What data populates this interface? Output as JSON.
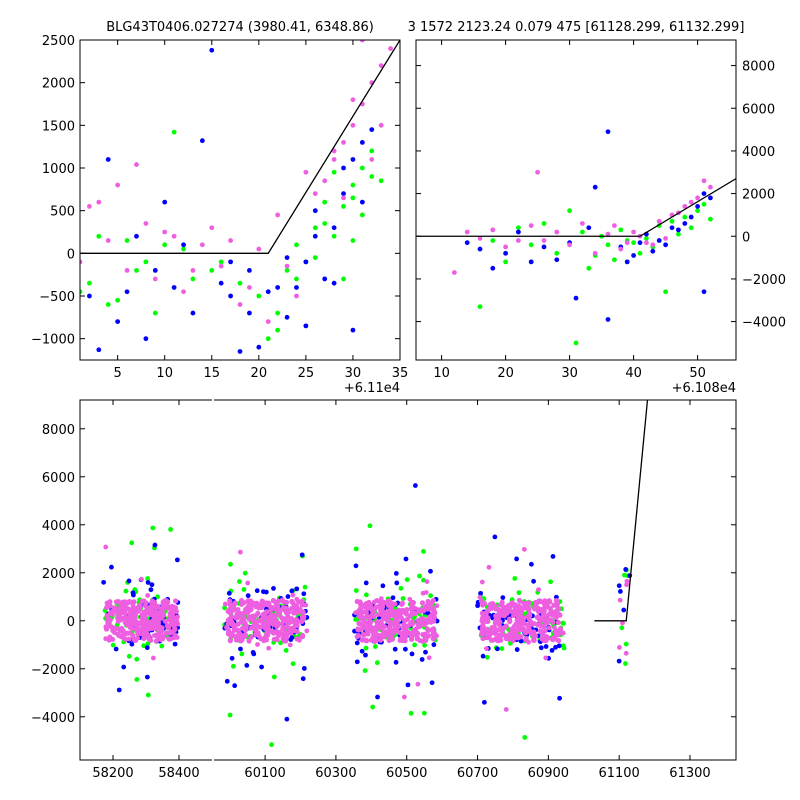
{
  "chart_data": [
    {
      "id": "top-left",
      "type": "scatter",
      "title": "BLG43T0406.027274 (3980.41, 6348.86)",
      "offset_label": "+6.11e4",
      "xlim": [
        1,
        35
      ],
      "ylim": [
        -1250,
        2500
      ],
      "xticks": [
        5,
        10,
        15,
        20,
        25,
        30,
        35
      ],
      "yticks": [
        -1000,
        -500,
        0,
        500,
        1000,
        1500,
        2000,
        2500
      ],
      "ytick_side": "left",
      "model_line": {
        "x": [
          1,
          21,
          35
        ],
        "y": [
          0,
          0,
          2500
        ]
      },
      "series": [
        {
          "name": "green",
          "color": "#00ff00",
          "points": [
            [
              1,
              -450
            ],
            [
              2,
              -350
            ],
            [
              3,
              200
            ],
            [
              4,
              -600
            ],
            [
              5,
              -550
            ],
            [
              6,
              150
            ],
            [
              7,
              -200
            ],
            [
              8,
              -100
            ],
            [
              9,
              -700
            ],
            [
              10,
              100
            ],
            [
              11,
              1420
            ],
            [
              12,
              50
            ],
            [
              13,
              -300
            ],
            [
              15,
              -200
            ],
            [
              16,
              -100
            ],
            [
              18,
              -350
            ],
            [
              20,
              -500
            ],
            [
              22,
              -700
            ],
            [
              23,
              -200
            ],
            [
              24,
              -300
            ],
            [
              25,
              -100
            ],
            [
              26,
              300
            ],
            [
              27,
              600
            ],
            [
              28,
              200
            ],
            [
              29,
              550
            ],
            [
              30,
              800
            ],
            [
              31,
              1000
            ],
            [
              32,
              900
            ],
            [
              33,
              850
            ],
            [
              29,
              -300
            ],
            [
              30,
              150
            ],
            [
              31,
              450
            ],
            [
              28,
              950
            ],
            [
              27,
              350
            ],
            [
              26,
              -50
            ],
            [
              24,
              100
            ],
            [
              22,
              -900
            ],
            [
              21,
              -1000
            ],
            [
              30,
              650
            ],
            [
              32,
              1200
            ]
          ]
        },
        {
          "name": "blue",
          "color": "#0000ff",
          "points": [
            [
              2,
              -500
            ],
            [
              3,
              -1130
            ],
            [
              4,
              1100
            ],
            [
              5,
              -800
            ],
            [
              6,
              -450
            ],
            [
              7,
              200
            ],
            [
              8,
              -1000
            ],
            [
              9,
              -200
            ],
            [
              10,
              600
            ],
            [
              11,
              -400
            ],
            [
              12,
              100
            ],
            [
              13,
              -700
            ],
            [
              14,
              1320
            ],
            [
              15,
              2380
            ],
            [
              16,
              -350
            ],
            [
              17,
              -500
            ],
            [
              18,
              -1150
            ],
            [
              19,
              -700
            ],
            [
              20,
              -1100
            ],
            [
              22,
              -400
            ],
            [
              23,
              -750
            ],
            [
              24,
              -400
            ],
            [
              25,
              -100
            ],
            [
              26,
              200
            ],
            [
              27,
              -300
            ],
            [
              28,
              300
            ],
            [
              29,
              700
            ],
            [
              30,
              1100
            ],
            [
              31,
              1300
            ],
            [
              32,
              1450
            ],
            [
              30,
              -900
            ],
            [
              28,
              -350
            ],
            [
              26,
              500
            ],
            [
              31,
              600
            ],
            [
              29,
              1000
            ],
            [
              25,
              -850
            ],
            [
              23,
              -50
            ],
            [
              21,
              -450
            ],
            [
              19,
              -200
            ],
            [
              17,
              -100
            ]
          ]
        },
        {
          "name": "magenta",
          "color": "#ee5ee1",
          "points": [
            [
              1,
              -100
            ],
            [
              2,
              550
            ],
            [
              3,
              600
            ],
            [
              4,
              150
            ],
            [
              5,
              800
            ],
            [
              6,
              -200
            ],
            [
              7,
              1040
            ],
            [
              8,
              350
            ],
            [
              9,
              -300
            ],
            [
              10,
              250
            ],
            [
              11,
              200
            ],
            [
              12,
              -450
            ],
            [
              13,
              -200
            ],
            [
              14,
              100
            ],
            [
              15,
              300
            ],
            [
              16,
              -150
            ],
            [
              17,
              150
            ],
            [
              18,
              -600
            ],
            [
              19,
              -400
            ],
            [
              20,
              50
            ],
            [
              21,
              -800
            ],
            [
              22,
              450
            ],
            [
              23,
              -150
            ],
            [
              24,
              -500
            ],
            [
              25,
              950
            ],
            [
              26,
              700
            ],
            [
              27,
              850
            ],
            [
              28,
              1100
            ],
            [
              29,
              1300
            ],
            [
              30,
              1500
            ],
            [
              31,
              1750
            ],
            [
              32,
              2000
            ],
            [
              33,
              2200
            ],
            [
              34,
              2400
            ],
            [
              30,
              1800
            ],
            [
              31,
              2500
            ],
            [
              32,
              1100
            ],
            [
              29,
              650
            ],
            [
              33,
              1500
            ],
            [
              28,
              1200
            ]
          ]
        }
      ]
    },
    {
      "id": "top-right",
      "type": "scatter",
      "title": "3 1572 2123.24 0.079 475 [61128.299, 61132.299]",
      "offset_label": "+6.108e4",
      "xlim": [
        6,
        56
      ],
      "ylim": [
        -5800,
        9200
      ],
      "xticks": [
        10,
        20,
        30,
        40,
        50
      ],
      "yticks": [
        -4000,
        -2000,
        0,
        2000,
        4000,
        6000,
        8000
      ],
      "ytick_side": "right",
      "model_line": {
        "x": [
          6,
          41,
          56
        ],
        "y": [
          0,
          0,
          2700
        ]
      },
      "series": [
        {
          "name": "green",
          "color": "#00ff00",
          "points": [
            [
              16,
              -3300
            ],
            [
              18,
              -200
            ],
            [
              20,
              -1200
            ],
            [
              22,
              400
            ],
            [
              24,
              -400
            ],
            [
              26,
              600
            ],
            [
              28,
              -800
            ],
            [
              30,
              1200
            ],
            [
              31,
              -5000
            ],
            [
              32,
              200
            ],
            [
              34,
              -900
            ],
            [
              36,
              -400
            ],
            [
              38,
              300
            ],
            [
              40,
              -300
            ],
            [
              42,
              -100
            ],
            [
              44,
              500
            ],
            [
              45,
              -2600
            ],
            [
              46,
              700
            ],
            [
              48,
              900
            ],
            [
              50,
              1200
            ],
            [
              51,
              1500
            ],
            [
              52,
              800
            ],
            [
              49,
              400
            ],
            [
              47,
              100
            ],
            [
              43,
              -500
            ],
            [
              41,
              -800
            ],
            [
              39,
              -200
            ],
            [
              37,
              -1100
            ],
            [
              35,
              0
            ],
            [
              33,
              -1500
            ]
          ]
        },
        {
          "name": "blue",
          "color": "#0000ff",
          "points": [
            [
              14,
              -300
            ],
            [
              16,
              -600
            ],
            [
              18,
              -1500
            ],
            [
              20,
              -800
            ],
            [
              22,
              200
            ],
            [
              24,
              -1200
            ],
            [
              26,
              -500
            ],
            [
              28,
              -1100
            ],
            [
              30,
              -300
            ],
            [
              31,
              -2900
            ],
            [
              33,
              400
            ],
            [
              34,
              2300
            ],
            [
              36,
              4900
            ],
            [
              36,
              -3900
            ],
            [
              38,
              -500
            ],
            [
              40,
              -900
            ],
            [
              42,
              100
            ],
            [
              44,
              -200
            ],
            [
              46,
              400
            ],
            [
              48,
              600
            ],
            [
              50,
              1400
            ],
            [
              51,
              2000
            ],
            [
              52,
              1800
            ],
            [
              51,
              -2600
            ],
            [
              49,
              900
            ],
            [
              47,
              300
            ],
            [
              45,
              -400
            ],
            [
              43,
              -700
            ],
            [
              41,
              -300
            ],
            [
              39,
              -1200
            ]
          ]
        },
        {
          "name": "magenta",
          "color": "#ee5ee1",
          "points": [
            [
              12,
              -1700
            ],
            [
              14,
              200
            ],
            [
              16,
              -100
            ],
            [
              18,
              300
            ],
            [
              20,
              -500
            ],
            [
              22,
              -200
            ],
            [
              24,
              500
            ],
            [
              25,
              3000
            ],
            [
              26,
              -200
            ],
            [
              28,
              200
            ],
            [
              30,
              -400
            ],
            [
              32,
              600
            ],
            [
              34,
              -800
            ],
            [
              36,
              100
            ],
            [
              38,
              -600
            ],
            [
              40,
              200
            ],
            [
              42,
              -300
            ],
            [
              44,
              700
            ],
            [
              46,
              1000
            ],
            [
              48,
              1400
            ],
            [
              50,
              1800
            ],
            [
              52,
              2300
            ],
            [
              51,
              2600
            ],
            [
              49,
              1600
            ],
            [
              47,
              1100
            ],
            [
              45,
              -100
            ],
            [
              43,
              -400
            ],
            [
              41,
              0
            ],
            [
              39,
              -300
            ],
            [
              37,
              500
            ]
          ]
        }
      ]
    },
    {
      "id": "bottom",
      "type": "scatter",
      "title": "",
      "offset_label": "",
      "xlim": [
        58100,
        61430
      ],
      "ylim": [
        -5800,
        9200
      ],
      "xticks": [
        58200,
        58400,
        60100,
        60300,
        60500,
        60700,
        60900,
        61100,
        61300
      ],
      "yticks": [
        -4000,
        -2000,
        0,
        2000,
        4000,
        6000,
        8000
      ],
      "ytick_side": "left",
      "broken_axis_note": "horizontal axis is split: left segment 58100–58500, right segment 59950–61430",
      "model_line": {
        "x": [
          61030,
          61120,
          61180
        ],
        "y": [
          0,
          0,
          9200
        ]
      },
      "series": [
        {
          "name": "green",
          "color": "#00ff00",
          "seasons": [
            [
              58170,
              58400
            ],
            [
              59985,
              60220
            ],
            [
              60350,
              60590
            ],
            [
              60700,
              60945
            ]
          ],
          "count_per_season": 70
        },
        {
          "name": "blue",
          "color": "#0000ff",
          "seasons": [
            [
              58170,
              58400
            ],
            [
              59985,
              60220
            ],
            [
              60350,
              60590
            ],
            [
              60700,
              60945
            ]
          ],
          "count_per_season": 70
        },
        {
          "name": "magenta",
          "color": "#ee5ee1",
          "seasons": [
            [
              58170,
              58400
            ],
            [
              59985,
              60220
            ],
            [
              60350,
              60590
            ],
            [
              60700,
              60945
            ]
          ],
          "count_per_season": 70
        }
      ]
    }
  ]
}
